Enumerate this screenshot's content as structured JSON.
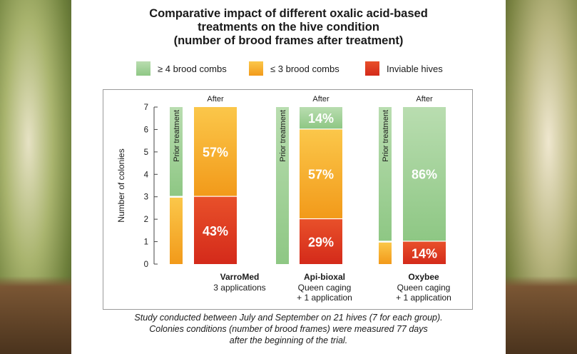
{
  "chart_data": {
    "type": "bar",
    "title_lines": [
      "Comparative impact of different oxalic acid-based",
      "treatments on the hive condition",
      "(number of brood frames after treatment)"
    ],
    "ylabel": "Number of colonies",
    "ylim": [
      0,
      7
    ],
    "yticks": [
      "0",
      "1",
      "2",
      "3",
      "4",
      "5",
      "6",
      "7"
    ],
    "legend": [
      {
        "label": "≥ 4 brood combs",
        "color": "#9fcf8f"
      },
      {
        "label": "≤ 3 brood combs",
        "color": "#f7b02e"
      },
      {
        "label": "Inviable hives",
        "color": "#e03a1e"
      }
    ],
    "colors": {
      "ge4_top": "#b9ddb0",
      "ge4_bottom": "#8ec784",
      "le3_top": "#fbc74a",
      "le3_bottom": "#f29a1a",
      "inv_top": "#e8502a",
      "inv_bottom": "#d42a1a"
    },
    "prior_label": "Prior treatment",
    "after_label": "After",
    "groups": [
      {
        "name": "VarroMed",
        "sub": [
          "3 applications"
        ],
        "prior": {
          "ge4": 4,
          "le3": 3
        },
        "after": [
          {
            "cat": "inv",
            "value": 3,
            "label": "43%"
          },
          {
            "cat": "le3",
            "value": 4,
            "label": "57%"
          }
        ]
      },
      {
        "name": "Api-bioxal",
        "sub": [
          "Queen caging",
          "+ 1 application"
        ],
        "prior": {
          "ge4": 7,
          "le3": 0
        },
        "after": [
          {
            "cat": "inv",
            "value": 2,
            "label": "29%"
          },
          {
            "cat": "le3",
            "value": 4,
            "label": "57%"
          },
          {
            "cat": "ge4",
            "value": 1,
            "label": "14%"
          }
        ]
      },
      {
        "name": "Oxybee",
        "sub": [
          "Queen caging",
          "+ 1 application"
        ],
        "prior": {
          "ge4": 6,
          "le3": 1
        },
        "after": [
          {
            "cat": "inv",
            "value": 1,
            "label": "14%"
          },
          {
            "cat": "ge4",
            "value": 6,
            "label": "86%"
          }
        ]
      }
    ]
  },
  "footnote_lines": [
    "Study conducted between July and September on 21 hives (7 for each group).",
    "Colonies conditions (number of brood frames) were measured 77 days",
    "after the beginning of the trial."
  ]
}
